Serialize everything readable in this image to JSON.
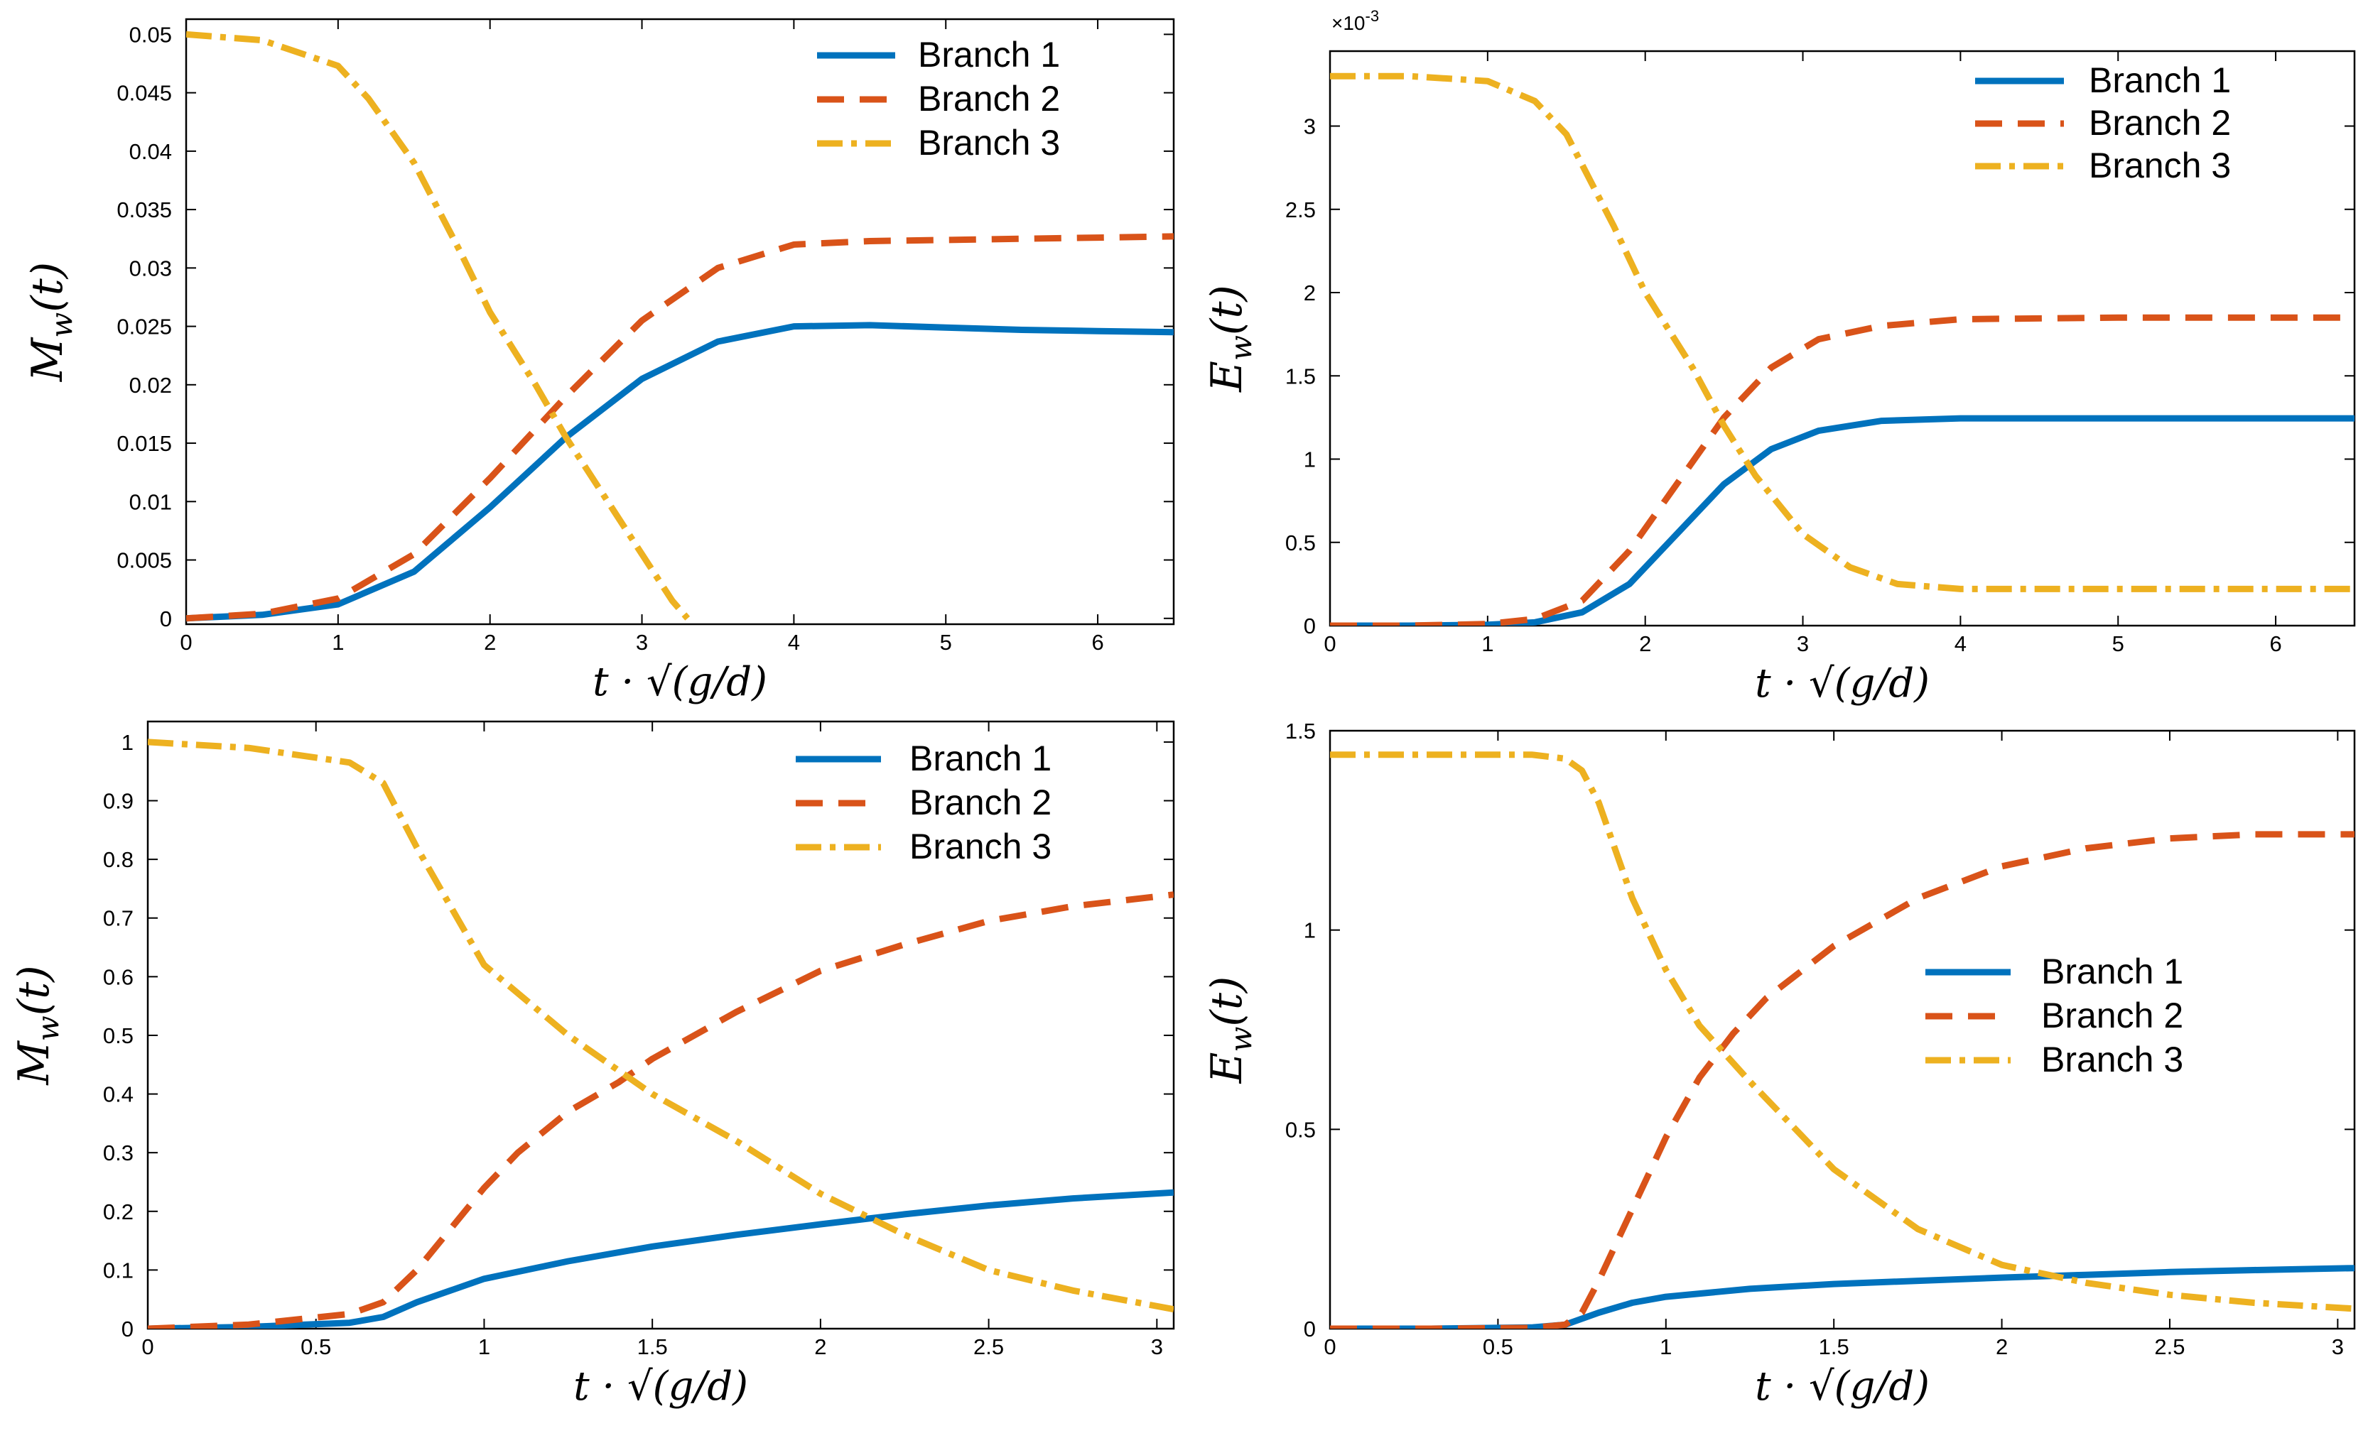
{
  "colors": {
    "branch1": "#0072BD",
    "branch2": "#D95319",
    "branch3": "#EDB120"
  },
  "chart_data": [
    {
      "type": "line",
      "panel": "top-left",
      "ylabel": "M_w(t)",
      "ylabel_base": "M",
      "ylabel_sub": "w",
      "ylabel_arg": "(t)",
      "xlabel": "t · √(g/d)",
      "xlim": [
        0,
        6.5
      ],
      "ylim": [
        -0.0005,
        0.0513
      ],
      "xticks": [
        0,
        1,
        2,
        3,
        4,
        5,
        6
      ],
      "xtick_labels": [
        "0",
        "1",
        "2",
        "3",
        "4",
        "5",
        "6"
      ],
      "yticks": [
        0,
        0.005,
        0.01,
        0.015,
        0.02,
        0.025,
        0.03,
        0.035,
        0.04,
        0.045,
        0.05
      ],
      "ytick_labels": [
        "0",
        "0.005",
        "0.01",
        "0.015",
        "0.02",
        "0.025",
        "0.03",
        "0.035",
        "0.04",
        "0.045",
        "0.05"
      ],
      "exponent_label": "",
      "legend_position": "top-right",
      "series": [
        {
          "name": "Branch 1",
          "style": "solid",
          "x": [
            0,
            0.5,
            1,
            1.5,
            2,
            2.5,
            3,
            3.5,
            4,
            4.5,
            5,
            5.5,
            6,
            6.5
          ],
          "y": [
            0,
            0.0003,
            0.0012,
            0.004,
            0.0095,
            0.0155,
            0.0205,
            0.0237,
            0.025,
            0.0251,
            0.0249,
            0.0247,
            0.0246,
            0.0245
          ]
        },
        {
          "name": "Branch 2",
          "style": "dashed",
          "x": [
            0,
            0.5,
            1,
            1.5,
            2,
            2.5,
            3,
            3.5,
            4,
            4.5,
            5,
            5.5,
            6,
            6.5
          ],
          "y": [
            0,
            0.0004,
            0.0017,
            0.0055,
            0.012,
            0.019,
            0.0255,
            0.03,
            0.032,
            0.0323,
            0.0324,
            0.0325,
            0.0326,
            0.0327
          ]
        },
        {
          "name": "Branch 3",
          "style": "dashdot",
          "x": [
            0,
            0.5,
            1,
            1.2,
            1.5,
            1.8,
            2,
            2.3,
            2.5,
            2.8,
            3,
            3.2,
            3.3
          ],
          "y": [
            0.05,
            0.0495,
            0.0473,
            0.0445,
            0.039,
            0.0315,
            0.0262,
            0.02,
            0.0155,
            0.0095,
            0.0055,
            0.0015,
            0
          ]
        }
      ]
    },
    {
      "type": "line",
      "panel": "top-right",
      "ylabel": "E_w(t)",
      "ylabel_base": "E",
      "ylabel_sub": "w",
      "ylabel_arg": "(t)",
      "xlabel": "t · √(g/d)",
      "xlim": [
        0,
        6.5
      ],
      "ylim": [
        0,
        3.45
      ],
      "xticks": [
        0,
        1,
        2,
        3,
        4,
        5,
        6
      ],
      "xtick_labels": [
        "0",
        "1",
        "2",
        "3",
        "4",
        "5",
        "6"
      ],
      "yticks": [
        0,
        0.5,
        1,
        1.5,
        2,
        2.5,
        3
      ],
      "ytick_labels": [
        "0",
        "0.5",
        "1",
        "1.5",
        "2",
        "2.5",
        "3"
      ],
      "exponent_label": "×10",
      "exponent_power": "-3",
      "legend_position": "top-right",
      "series": [
        {
          "name": "Branch 1",
          "style": "solid",
          "x": [
            0,
            0.5,
            1,
            1.3,
            1.6,
            1.9,
            2.2,
            2.5,
            2.8,
            3.1,
            3.5,
            4,
            5,
            6,
            6.5
          ],
          "y": [
            0,
            0,
            0.005,
            0.02,
            0.08,
            0.25,
            0.55,
            0.85,
            1.06,
            1.17,
            1.23,
            1.245,
            1.245,
            1.245,
            1.245
          ]
        },
        {
          "name": "Branch 2",
          "style": "dashed",
          "x": [
            0,
            0.5,
            1,
            1.3,
            1.6,
            1.9,
            2.2,
            2.5,
            2.8,
            3.1,
            3.5,
            4,
            5,
            6,
            6.5
          ],
          "y": [
            0,
            0,
            0.01,
            0.04,
            0.15,
            0.45,
            0.85,
            1.25,
            1.55,
            1.72,
            1.8,
            1.84,
            1.85,
            1.85,
            1.85
          ]
        },
        {
          "name": "Branch 3",
          "style": "dashdot",
          "x": [
            0,
            0.5,
            1,
            1.3,
            1.5,
            1.8,
            2,
            2.3,
            2.5,
            2.7,
            3,
            3.3,
            3.6,
            4,
            5,
            6,
            6.5
          ],
          "y": [
            3.3,
            3.3,
            3.27,
            3.15,
            2.95,
            2.4,
            2.0,
            1.55,
            1.2,
            0.9,
            0.55,
            0.35,
            0.25,
            0.22,
            0.22,
            0.22,
            0.22
          ]
        }
      ]
    },
    {
      "type": "line",
      "panel": "bottom-left",
      "ylabel": "M_w(t)",
      "ylabel_base": "M",
      "ylabel_sub": "w",
      "ylabel_arg": "(t)",
      "xlabel": "t · √(g/d)",
      "xlim": [
        0,
        3.05
      ],
      "ylim": [
        0,
        1.035
      ],
      "xticks": [
        0,
        0.5,
        1,
        1.5,
        2,
        2.5,
        3
      ],
      "xtick_labels": [
        "0",
        "0.5",
        "1",
        "1.5",
        "2",
        "2.5",
        "3"
      ],
      "yticks": [
        0,
        0.1,
        0.2,
        0.3,
        0.4,
        0.5,
        0.6,
        0.7,
        0.8,
        0.9,
        1
      ],
      "ytick_labels": [
        "0",
        "0.1",
        "0.2",
        "0.3",
        "0.4",
        "0.5",
        "0.6",
        "0.7",
        "0.8",
        "0.9",
        "1"
      ],
      "exponent_label": "",
      "legend_position": "top-right",
      "series": [
        {
          "name": "Branch 1",
          "style": "solid",
          "x": [
            0,
            0.3,
            0.6,
            0.7,
            0.8,
            0.9,
            1,
            1.25,
            1.5,
            1.75,
            2,
            2.25,
            2.5,
            2.75,
            3.05
          ],
          "y": [
            0,
            0.003,
            0.01,
            0.02,
            0.045,
            0.065,
            0.085,
            0.115,
            0.14,
            0.16,
            0.178,
            0.195,
            0.21,
            0.222,
            0.232
          ]
        },
        {
          "name": "Branch 2",
          "style": "dashed",
          "x": [
            0,
            0.3,
            0.6,
            0.7,
            0.8,
            0.9,
            1,
            1.1,
            1.25,
            1.4,
            1.5,
            1.75,
            2,
            2.25,
            2.5,
            2.75,
            3.05
          ],
          "y": [
            0,
            0.007,
            0.025,
            0.045,
            0.1,
            0.17,
            0.24,
            0.3,
            0.37,
            0.42,
            0.46,
            0.54,
            0.61,
            0.655,
            0.695,
            0.72,
            0.74
          ]
        },
        {
          "name": "Branch 3",
          "style": "dashdot",
          "x": [
            0,
            0.3,
            0.6,
            0.7,
            0.8,
            0.9,
            1,
            1.25,
            1.5,
            1.75,
            2,
            2.25,
            2.5,
            2.75,
            3.05
          ],
          "y": [
            1.0,
            0.99,
            0.965,
            0.93,
            0.82,
            0.72,
            0.62,
            0.5,
            0.4,
            0.32,
            0.23,
            0.16,
            0.1,
            0.065,
            0.033
          ]
        }
      ]
    },
    {
      "type": "line",
      "panel": "bottom-right",
      "ylabel": "E_w(t)",
      "ylabel_base": "E",
      "ylabel_sub": "w",
      "ylabel_arg": "(t)",
      "xlabel": "t · √(g/d)",
      "xlim": [
        0,
        3.05
      ],
      "ylim": [
        0,
        1.5
      ],
      "xticks": [
        0,
        0.5,
        1,
        1.5,
        2,
        2.5,
        3
      ],
      "xtick_labels": [
        "0",
        "0.5",
        "1",
        "1.5",
        "2",
        "2.5",
        "3"
      ],
      "yticks": [
        0,
        0.5,
        1,
        1.5
      ],
      "ytick_labels": [
        "0",
        "0.5",
        "1",
        "1.5"
      ],
      "exponent_label": "",
      "legend_position": "center-right",
      "series": [
        {
          "name": "Branch 1",
          "style": "solid",
          "x": [
            0,
            0.3,
            0.6,
            0.7,
            0.8,
            0.9,
            1,
            1.25,
            1.5,
            1.75,
            2,
            2.25,
            2.5,
            2.75,
            3.05
          ],
          "y": [
            0,
            0,
            0.003,
            0.01,
            0.04,
            0.065,
            0.08,
            0.1,
            0.112,
            0.12,
            0.128,
            0.135,
            0.142,
            0.147,
            0.152
          ]
        },
        {
          "name": "Branch 2",
          "style": "dashed",
          "x": [
            0,
            0.3,
            0.6,
            0.7,
            0.75,
            0.8,
            0.9,
            1,
            1.1,
            1.2,
            1.3,
            1.5,
            1.75,
            2,
            2.25,
            2.5,
            2.75,
            3.05
          ],
          "y": [
            0,
            0,
            0.002,
            0.01,
            0.04,
            0.12,
            0.3,
            0.48,
            0.63,
            0.74,
            0.83,
            0.96,
            1.08,
            1.16,
            1.205,
            1.23,
            1.24,
            1.24
          ]
        },
        {
          "name": "Branch 3",
          "style": "dashdot",
          "x": [
            0,
            0.3,
            0.6,
            0.7,
            0.75,
            0.8,
            0.9,
            1,
            1.1,
            1.25,
            1.5,
            1.75,
            2,
            2.25,
            2.5,
            2.75,
            3.05
          ],
          "y": [
            1.44,
            1.44,
            1.44,
            1.43,
            1.4,
            1.32,
            1.08,
            0.9,
            0.76,
            0.62,
            0.4,
            0.25,
            0.16,
            0.115,
            0.085,
            0.065,
            0.05
          ]
        }
      ]
    }
  ]
}
